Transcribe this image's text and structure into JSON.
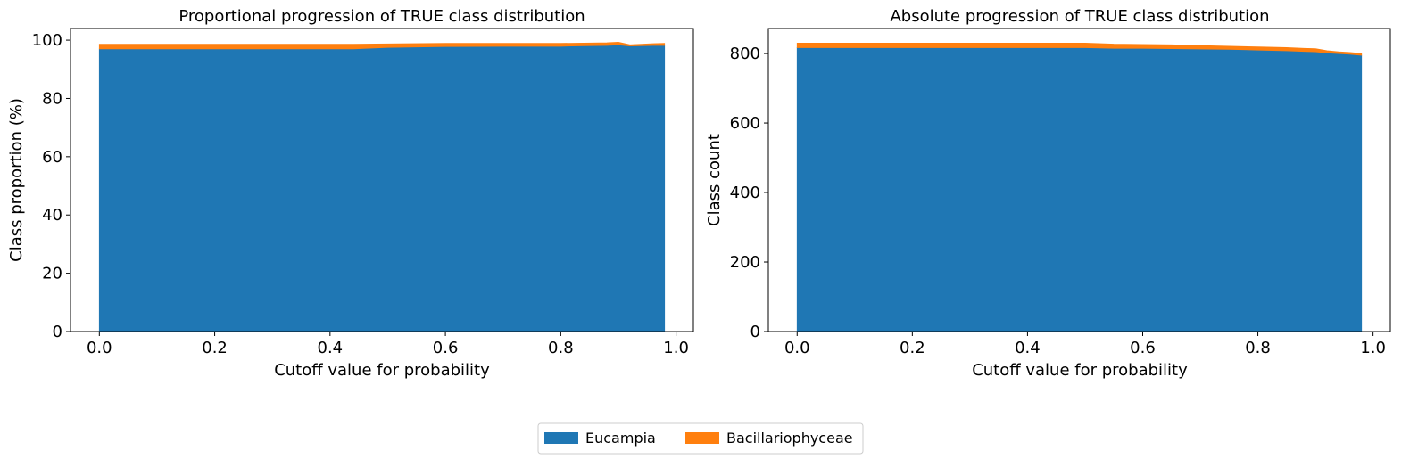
{
  "colors": {
    "eucampia": "#1f77b4",
    "bacillariophyceae": "#ff7f0e"
  },
  "legend": {
    "placement": "bottom-center",
    "items": [
      "Eucampia",
      "Bacillariophyceae"
    ]
  },
  "chart_data": [
    {
      "type": "area",
      "stacked": true,
      "title": "Proportional progression of TRUE class distribution",
      "xlabel": "Cutoff value for probability",
      "ylabel": "Class proportion (%)",
      "xlim": [
        -0.05,
        1.03
      ],
      "ylim": [
        0,
        104
      ],
      "xticks": [
        0.0,
        0.2,
        0.4,
        0.6,
        0.8,
        1.0
      ],
      "xtick_labels": [
        "0.0",
        "0.2",
        "0.4",
        "0.6",
        "0.8",
        "1.0"
      ],
      "yticks": [
        0,
        20,
        40,
        60,
        80,
        100
      ],
      "ytick_labels": [
        "0",
        "20",
        "40",
        "60",
        "80",
        "100"
      ],
      "x": [
        0.0,
        0.1,
        0.2,
        0.3,
        0.4,
        0.44,
        0.5,
        0.6,
        0.7,
        0.8,
        0.84,
        0.88,
        0.9,
        0.92,
        0.96,
        0.98
      ],
      "series": [
        {
          "name": "Eucampia",
          "values": [
            97.0,
            97.0,
            97.0,
            97.0,
            97.0,
            97.0,
            97.5,
            97.8,
            97.9,
            97.9,
            98.1,
            98.2,
            98.4,
            98.0,
            98.2,
            98.2
          ]
        },
        {
          "name": "Bacillariophyceae",
          "values": [
            1.6,
            1.6,
            1.6,
            1.6,
            1.6,
            1.6,
            1.2,
            1.1,
            1.0,
            1.0,
            0.9,
            0.9,
            0.9,
            0.4,
            0.6,
            0.7
          ]
        }
      ]
    },
    {
      "type": "area",
      "stacked": true,
      "title": "Absolute progression of TRUE class distribution",
      "xlabel": "Cutoff value for probability",
      "ylabel": "Class count",
      "xlim": [
        -0.05,
        1.03
      ],
      "ylim": [
        0,
        872
      ],
      "xticks": [
        0.0,
        0.2,
        0.4,
        0.6,
        0.8,
        1.0
      ],
      "xtick_labels": [
        "0.0",
        "0.2",
        "0.4",
        "0.6",
        "0.8",
        "1.0"
      ],
      "yticks": [
        0,
        200,
        400,
        600,
        800
      ],
      "ytick_labels": [
        "0",
        "200",
        "400",
        "600",
        "800"
      ],
      "x": [
        0.0,
        0.1,
        0.2,
        0.3,
        0.4,
        0.5,
        0.55,
        0.6,
        0.65,
        0.7,
        0.75,
        0.8,
        0.85,
        0.88,
        0.9,
        0.92,
        0.94,
        0.96,
        0.98
      ],
      "series": [
        {
          "name": "Eucampia",
          "values": [
            817,
            817,
            817,
            817,
            817,
            817,
            815,
            815,
            814,
            813,
            812,
            810,
            808,
            806,
            805,
            802,
            800,
            798,
            795
          ]
        },
        {
          "name": "Bacillariophyceae",
          "values": [
            13,
            13,
            13,
            13,
            13,
            13,
            12,
            11,
            11,
            10,
            9,
            9,
            9,
            9,
            9,
            6,
            5,
            5,
            5
          ]
        }
      ]
    }
  ]
}
